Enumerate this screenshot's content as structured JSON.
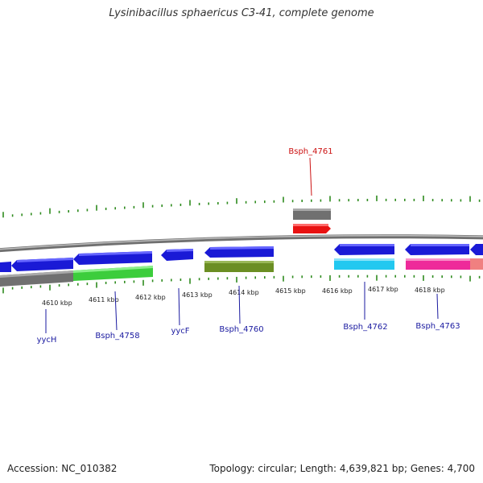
{
  "title": "Lysinibacillus sphaericus C3-41, complete genome",
  "footer": {
    "accession": "Accession: NC_010382",
    "summary": "Topology: circular; Length: 4,639,821 bp; Genes: 4,700"
  },
  "colors": {
    "backbone": "#888888",
    "tick": "#2e8b1e",
    "gene_blue": "#1a1ad6",
    "gene_gray": "#707070",
    "gene_red": "#e81212",
    "gene_green": "#3ccd3c",
    "gene_olive": "#6b8e23",
    "gene_cyan": "#22c8f0",
    "gene_magenta": "#ee2a9a",
    "gene_salmon": "#f08080",
    "label_blue": "#1a1aa0",
    "label_red": "#cc1111"
  },
  "chart_data": {
    "type": "genome-map",
    "position_ticks": [
      "4610 kbp",
      "4611 kbp",
      "4612 kbp",
      "4613 kbp",
      "4614 kbp",
      "4615 kbp",
      "4616 kbp",
      "4617 kbp",
      "4618 kbp"
    ],
    "gene_labels": [
      {
        "name": "yycH",
        "color": "label_blue"
      },
      {
        "name": "Bsph_4758",
        "color": "label_blue"
      },
      {
        "name": "yycF",
        "color": "label_blue"
      },
      {
        "name": "Bsph_4760",
        "color": "label_blue"
      },
      {
        "name": "Bsph_4761",
        "color": "label_red"
      },
      {
        "name": "Bsph_4762",
        "color": "label_blue"
      },
      {
        "name": "Bsph_4763",
        "color": "label_blue"
      }
    ]
  }
}
